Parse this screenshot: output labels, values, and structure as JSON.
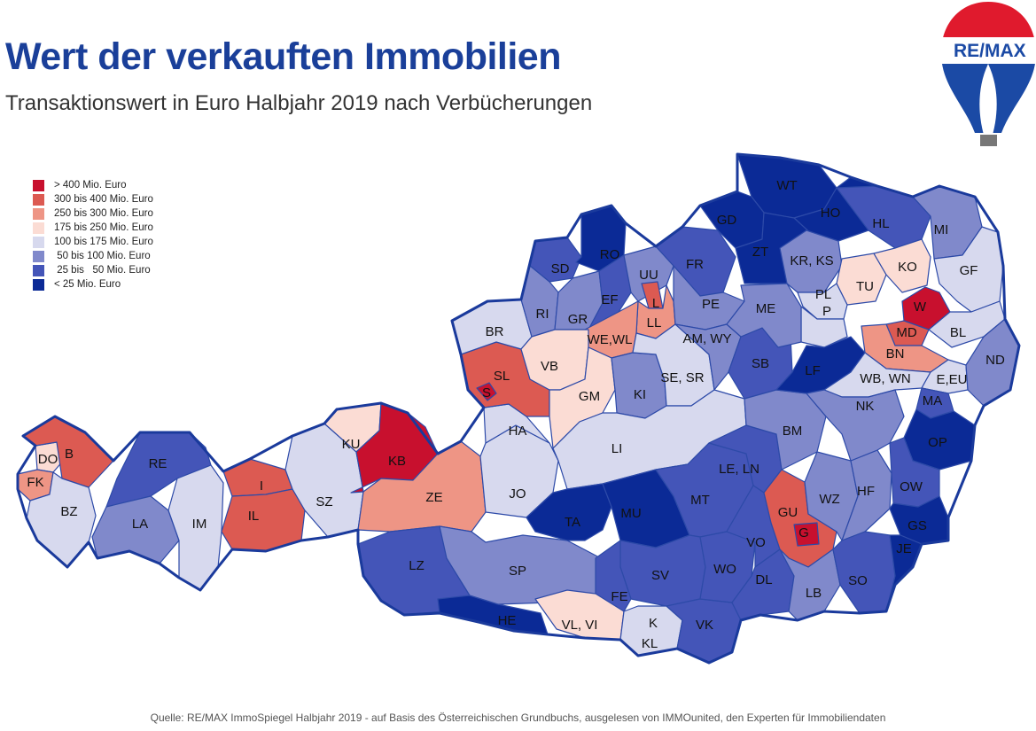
{
  "title": "Wert der verkauften Immobilien",
  "subtitle": "Transaktionswert in Euro Halbjahr 2019 nach Verbücherungen",
  "source": "Quelle: RE/MAX ImmoSpiegel Halbjahr 2019 - auf Basis des Österreichischen Grundbuchs, ausgelesen von IMMOunited, den Experten für Immobiliendaten",
  "logo_text": "RE/MAX",
  "legend": [
    {
      "label": "> 400 Mio. Euro",
      "color": "#c8102e"
    },
    {
      "label": "300 bis 400 Mio. Euro",
      "color": "#dc5a52"
    },
    {
      "label": "250 bis 300 Mio. Euro",
      "color": "#ee9585"
    },
    {
      "label": "175 bis 250 Mio. Euro",
      "color": "#fbdcd4"
    },
    {
      "label": "100 bis 175 Mio. Euro",
      "color": "#d7d9ee"
    },
    {
      "label": " 50 bis 100 Mio. Euro",
      "color": "#8089cb"
    },
    {
      "label": " 25 bis   50 Mio. Euro",
      "color": "#4455b8"
    },
    {
      "label": "< 25 Mio. Euro",
      "color": "#0b2a96"
    }
  ],
  "districts": [
    {
      "name": "DO",
      "cls": 3
    },
    {
      "name": "B",
      "cls": 1
    },
    {
      "name": "FK",
      "cls": 2
    },
    {
      "name": "BZ",
      "cls": 4
    },
    {
      "name": "RE",
      "cls": 6
    },
    {
      "name": "LA",
      "cls": 5
    },
    {
      "name": "IM",
      "cls": 4
    },
    {
      "name": "I",
      "cls": 1
    },
    {
      "name": "IL",
      "cls": 1
    },
    {
      "name": "SZ",
      "cls": 4
    },
    {
      "name": "KU",
      "cls": 3
    },
    {
      "name": "KB",
      "cls": 0
    },
    {
      "name": "ZE",
      "cls": 2
    },
    {
      "name": "LZ",
      "cls": 6
    },
    {
      "name": "HE",
      "cls": 7
    },
    {
      "name": "SP",
      "cls": 5
    },
    {
      "name": "JO",
      "cls": 4
    },
    {
      "name": "HA",
      "cls": 4
    },
    {
      "name": "SL",
      "cls": 1
    },
    {
      "name": "S",
      "cls": 0
    },
    {
      "name": "BR",
      "cls": 4
    },
    {
      "name": "SD",
      "cls": 6
    },
    {
      "name": "RO",
      "cls": 7
    },
    {
      "name": "RI",
      "cls": 5
    },
    {
      "name": "GR",
      "cls": 5
    },
    {
      "name": "EF",
      "cls": 6
    },
    {
      "name": "UU",
      "cls": 5
    },
    {
      "name": "L",
      "cls": 1
    },
    {
      "name": "LL",
      "cls": 2
    },
    {
      "name": "WE,WL",
      "cls": 2
    },
    {
      "name": "VB",
      "cls": 3
    },
    {
      "name": "GM",
      "cls": 3
    },
    {
      "name": "KI",
      "cls": 5
    },
    {
      "name": "SE, SR",
      "cls": 4
    },
    {
      "name": "FR",
      "cls": 6
    },
    {
      "name": "PE",
      "cls": 5
    },
    {
      "name": "AM, WY",
      "cls": 5
    },
    {
      "name": "SB",
      "cls": 6
    },
    {
      "name": "LI",
      "cls": 4
    },
    {
      "name": "TA",
      "cls": 7
    },
    {
      "name": "MU",
      "cls": 7
    },
    {
      "name": "MT",
      "cls": 6
    },
    {
      "name": "LE, LN",
      "cls": 6
    },
    {
      "name": "BM",
      "cls": 5
    },
    {
      "name": "SV",
      "cls": 6
    },
    {
      "name": "FE",
      "cls": 6
    },
    {
      "name": "VL, VI",
      "cls": 3
    },
    {
      "name": "K",
      "cls": 4
    },
    {
      "name": "KL",
      "cls": 4
    },
    {
      "name": "VK",
      "cls": 6
    },
    {
      "name": "WO",
      "cls": 6
    },
    {
      "name": "VO",
      "cls": 6
    },
    {
      "name": "DL",
      "cls": 6
    },
    {
      "name": "GU",
      "cls": 1
    },
    {
      "name": "G",
      "cls": 0
    },
    {
      "name": "LB",
      "cls": 5
    },
    {
      "name": "WZ",
      "cls": 5
    },
    {
      "name": "HF",
      "cls": 5
    },
    {
      "name": "SO",
      "cls": 6
    },
    {
      "name": "WT",
      "cls": 7
    },
    {
      "name": "HO",
      "cls": 7
    },
    {
      "name": "GD",
      "cls": 7
    },
    {
      "name": "ZT",
      "cls": 7
    },
    {
      "name": "HL",
      "cls": 6
    },
    {
      "name": "MI",
      "cls": 5
    },
    {
      "name": "KR, KS",
      "cls": 5
    },
    {
      "name": "TU",
      "cls": 3
    },
    {
      "name": "KO",
      "cls": 3
    },
    {
      "name": "GF",
      "cls": 4
    },
    {
      "name": "PL",
      "cls": 4
    },
    {
      "name": "P",
      "cls": 4
    },
    {
      "name": "ME",
      "cls": 5
    },
    {
      "name": "W",
      "cls": 0
    },
    {
      "name": "MD",
      "cls": 1
    },
    {
      "name": "BL",
      "cls": 4
    },
    {
      "name": "BN",
      "cls": 2
    },
    {
      "name": "LF",
      "cls": 7
    },
    {
      "name": "WB, WN",
      "cls": 4
    },
    {
      "name": "E,EU",
      "cls": 4
    },
    {
      "name": "ND",
      "cls": 5
    },
    {
      "name": "NK",
      "cls": 5
    },
    {
      "name": "MA",
      "cls": 6
    },
    {
      "name": "OP",
      "cls": 7
    },
    {
      "name": "OW",
      "cls": 6
    },
    {
      "name": "GS",
      "cls": 7
    },
    {
      "name": "JE",
      "cls": 7
    }
  ]
}
